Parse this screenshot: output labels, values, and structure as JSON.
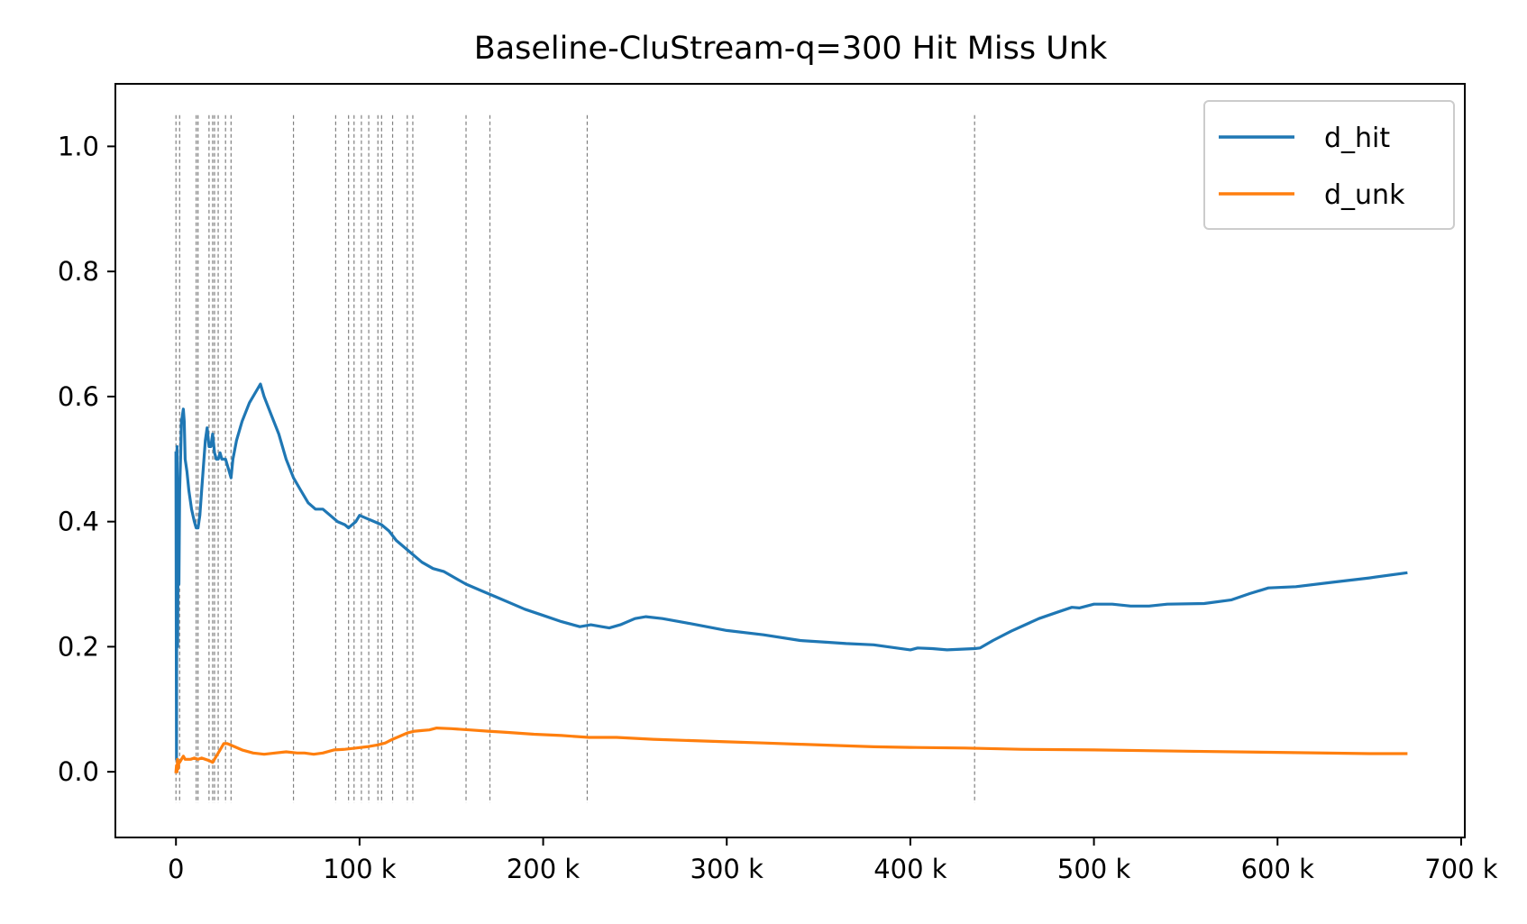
{
  "chart_data": {
    "type": "line",
    "title": "Baseline-CluStream-q=300 Hit Miss Unk",
    "xlabel": "",
    "ylabel": "",
    "xlim": [
      -33000,
      702000
    ],
    "ylim": [
      -0.105,
      1.1
    ],
    "x_ticks": [
      {
        "value": 0,
        "label": "0"
      },
      {
        "value": 100000,
        "label": "100 k"
      },
      {
        "value": 200000,
        "label": "200 k"
      },
      {
        "value": 300000,
        "label": "300 k"
      },
      {
        "value": 400000,
        "label": "400 k"
      },
      {
        "value": 500000,
        "label": "500 k"
      },
      {
        "value": 600000,
        "label": "600 k"
      },
      {
        "value": 700000,
        "label": "700 k"
      }
    ],
    "y_ticks": [
      {
        "value": 0.0,
        "label": "0.0"
      },
      {
        "value": 0.2,
        "label": "0.2"
      },
      {
        "value": 0.4,
        "label": "0.4"
      },
      {
        "value": 0.6,
        "label": "0.6"
      },
      {
        "value": 0.8,
        "label": "0.8"
      },
      {
        "value": 1.0,
        "label": "1.0"
      }
    ],
    "grid": false,
    "legend_position": "top-right",
    "drift_line_range": [
      -0.05,
      1.05
    ],
    "drift_lines": [
      0,
      2000,
      11000,
      12000,
      18000,
      20000,
      21000,
      23000,
      27000,
      30000,
      64000,
      87000,
      94000,
      97000,
      101000,
      105000,
      110000,
      112000,
      118000,
      126000,
      129000,
      158000,
      171000,
      224000,
      435000
    ],
    "series": [
      {
        "name": "d_hit",
        "color": "#1f77b4",
        "x": [
          0,
          300,
          600,
          900,
          1200,
          1600,
          2000,
          2500,
          3000,
          4000,
          4500,
          5000,
          6000,
          7000,
          8500,
          10000,
          11000,
          12000,
          13000,
          14000,
          16000,
          17000,
          18000,
          19000,
          20000,
          21000,
          22000,
          23000,
          24000,
          25000,
          27000,
          29000,
          30000,
          31000,
          33000,
          36000,
          40000,
          44000,
          46000,
          48000,
          52000,
          56000,
          60000,
          64000,
          68000,
          72000,
          76000,
          80000,
          84000,
          88000,
          92000,
          94000,
          96000,
          98000,
          100000,
          104000,
          108000,
          112000,
          116000,
          120000,
          126000,
          130000,
          134000,
          140000,
          146000,
          152000,
          158000,
          166000,
          174000,
          182000,
          190000,
          200000,
          210000,
          220000,
          226000,
          232000,
          236000,
          242000,
          250000,
          256000,
          265000,
          280000,
          300000,
          320000,
          340000,
          355000,
          365000,
          380000,
          400000,
          404000,
          412000,
          420000,
          435000,
          438000,
          445000,
          455000,
          470000,
          480000,
          488000,
          492000,
          500000,
          510000,
          520000,
          530000,
          540000,
          560000,
          575000,
          585000,
          595000,
          610000,
          630000,
          650000,
          670000
        ],
        "values": [
          0.51,
          0.02,
          0.52,
          0.2,
          0.38,
          0.3,
          0.45,
          0.5,
          0.56,
          0.58,
          0.56,
          0.5,
          0.48,
          0.45,
          0.42,
          0.4,
          0.39,
          0.39,
          0.41,
          0.45,
          0.53,
          0.55,
          0.52,
          0.52,
          0.54,
          0.51,
          0.5,
          0.5,
          0.51,
          0.5,
          0.5,
          0.48,
          0.47,
          0.5,
          0.53,
          0.56,
          0.59,
          0.61,
          0.62,
          0.6,
          0.57,
          0.54,
          0.5,
          0.47,
          0.45,
          0.43,
          0.42,
          0.42,
          0.41,
          0.4,
          0.395,
          0.39,
          0.395,
          0.4,
          0.41,
          0.405,
          0.4,
          0.395,
          0.385,
          0.37,
          0.355,
          0.345,
          0.335,
          0.325,
          0.32,
          0.31,
          0.3,
          0.29,
          0.28,
          0.27,
          0.26,
          0.25,
          0.24,
          0.232,
          0.235,
          0.232,
          0.23,
          0.235,
          0.245,
          0.248,
          0.245,
          0.237,
          0.226,
          0.219,
          0.21,
          0.207,
          0.205,
          0.203,
          0.195,
          0.198,
          0.197,
          0.195,
          0.197,
          0.198,
          0.21,
          0.225,
          0.245,
          0.255,
          0.263,
          0.262,
          0.268,
          0.268,
          0.265,
          0.265,
          0.268,
          0.269,
          0.275,
          0.285,
          0.294,
          0.296,
          0.303,
          0.31,
          0.318
        ]
      },
      {
        "name": "d_unk",
        "color": "#ff7f0e",
        "x": [
          0,
          300,
          600,
          900,
          1200,
          1600,
          2000,
          3000,
          4000,
          5000,
          6000,
          8000,
          10000,
          12000,
          14000,
          16000,
          18000,
          20000,
          22000,
          24000,
          26000,
          28000,
          32000,
          36000,
          42000,
          48000,
          54000,
          60000,
          66000,
          70000,
          75000,
          80000,
          86000,
          92000,
          98000,
          104000,
          110000,
          114000,
          118000,
          122000,
          126000,
          130000,
          134000,
          138000,
          142000,
          150000,
          160000,
          170000,
          180000,
          195000,
          210000,
          225000,
          240000,
          260000,
          280000,
          300000,
          320000,
          340000,
          360000,
          380000,
          400000,
          430000,
          460000,
          500000,
          550000,
          600000,
          650000,
          670000
        ],
        "values": [
          0.0,
          0.01,
          0.0,
          0.02,
          0.005,
          0.015,
          0.015,
          0.02,
          0.025,
          0.02,
          0.02,
          0.02,
          0.022,
          0.02,
          0.022,
          0.02,
          0.018,
          0.015,
          0.025,
          0.035,
          0.045,
          0.045,
          0.04,
          0.035,
          0.03,
          0.028,
          0.03,
          0.032,
          0.03,
          0.03,
          0.028,
          0.03,
          0.035,
          0.036,
          0.038,
          0.04,
          0.043,
          0.046,
          0.052,
          0.057,
          0.062,
          0.065,
          0.066,
          0.067,
          0.07,
          0.069,
          0.067,
          0.065,
          0.063,
          0.06,
          0.058,
          0.055,
          0.055,
          0.052,
          0.05,
          0.048,
          0.046,
          0.044,
          0.042,
          0.04,
          0.039,
          0.038,
          0.036,
          0.035,
          0.033,
          0.031,
          0.029,
          0.029
        ]
      }
    ]
  }
}
